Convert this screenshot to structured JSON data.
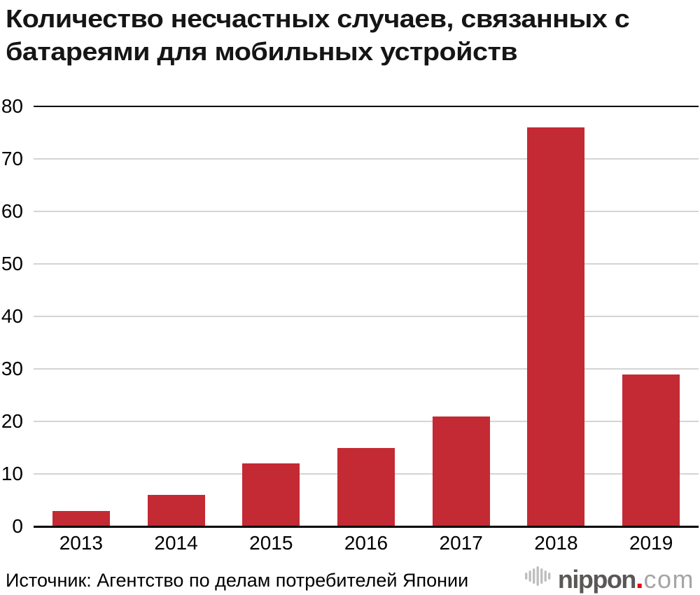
{
  "chart_data": {
    "type": "bar",
    "title": "Количество несчастных случаев, связанных с батареями для мобильных устройств",
    "categories": [
      "2013",
      "2014",
      "2015",
      "2016",
      "2017",
      "2018",
      "2019"
    ],
    "values": [
      3,
      6,
      12,
      15,
      21,
      76,
      29
    ],
    "xlabel": "",
    "ylabel": "",
    "ylim": [
      0,
      80
    ],
    "ytick_step": 10,
    "grid": "horizontal",
    "legend": "none"
  },
  "colors": {
    "bar": "#c42a33",
    "gridline": "#d4d4d4",
    "axis": "#000000",
    "title": "#151515",
    "logo_name": "#5a5757",
    "logo_dot": "#e60012",
    "logo_tld": "#a5a5a5",
    "logo_icon": "#bfbfbf"
  },
  "footer": {
    "source": "Источник: Агентство по делам потребителей Японии",
    "logo": {
      "name": "nippon",
      "separator": ".",
      "tld": "com"
    }
  }
}
